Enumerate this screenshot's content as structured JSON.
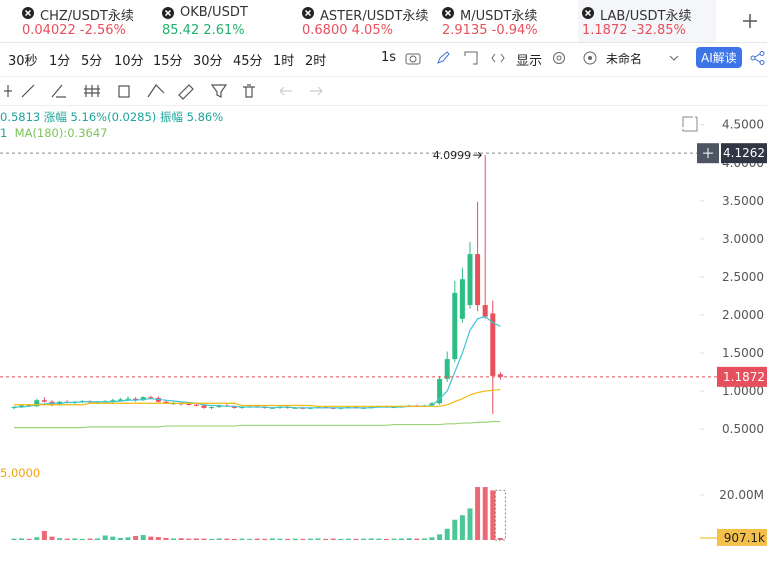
{
  "tabs": [
    {
      "symbol": "CHZ/USDT永续",
      "price": "0.04022",
      "change": "-2.56%",
      "color": "#e84f5c"
    },
    {
      "symbol": "OKB/USDT",
      "price": "85.42",
      "change": "2.61%",
      "color": "#20b26c"
    },
    {
      "symbol": "ASTER/USDT永续",
      "price": "0.6800",
      "change": "4.05%",
      "color": "#e84f5c"
    },
    {
      "symbol": "M/USDT永续",
      "price": "2.9135",
      "change": "-0.94%",
      "color": "#e84f5c"
    },
    {
      "symbol": "LAB/USDT永续",
      "price": "1.1872",
      "change": "-32.85%",
      "color": "#e84f5c"
    }
  ],
  "timeframes": [
    "30秒",
    "1分",
    "5分",
    "10分",
    "15分",
    "30分",
    "45分",
    "1时",
    "2时"
  ],
  "toolbar": {
    "interval": "1s",
    "display": "显示",
    "layout_name": "未命名",
    "ai_button": "AI解读"
  },
  "info": {
    "line1": "0.5813 涨幅 5.16%(0.0285) 振幅 5.86%",
    "ma_period": "1",
    "ma180": "MA(180):0.3647",
    "volume_ma": "5.0000"
  },
  "chart_data": {
    "type": "candlestick",
    "up_color": "#2ebd85",
    "down_color": "#e84f5c",
    "candles": [
      [
        0.78,
        0.8,
        0.76,
        0.79
      ],
      [
        0.79,
        0.82,
        0.78,
        0.81
      ],
      [
        0.81,
        0.83,
        0.79,
        0.8
      ],
      [
        0.8,
        0.9,
        0.79,
        0.88
      ],
      [
        0.88,
        0.92,
        0.85,
        0.86
      ],
      [
        0.86,
        0.88,
        0.8,
        0.82
      ],
      [
        0.82,
        0.87,
        0.81,
        0.86
      ],
      [
        0.86,
        0.88,
        0.84,
        0.85
      ],
      [
        0.85,
        0.87,
        0.83,
        0.86
      ],
      [
        0.86,
        0.88,
        0.84,
        0.87
      ],
      [
        0.87,
        0.88,
        0.84,
        0.85
      ],
      [
        0.85,
        0.87,
        0.83,
        0.86
      ],
      [
        0.86,
        0.88,
        0.84,
        0.87
      ],
      [
        0.87,
        0.9,
        0.85,
        0.88
      ],
      [
        0.88,
        0.91,
        0.86,
        0.89
      ],
      [
        0.89,
        0.93,
        0.87,
        0.9
      ],
      [
        0.9,
        0.92,
        0.86,
        0.88
      ],
      [
        0.88,
        0.93,
        0.87,
        0.92
      ],
      [
        0.92,
        0.94,
        0.9,
        0.91
      ],
      [
        0.91,
        0.93,
        0.85,
        0.86
      ],
      [
        0.86,
        0.88,
        0.83,
        0.84
      ],
      [
        0.84,
        0.86,
        0.82,
        0.84
      ],
      [
        0.84,
        0.85,
        0.81,
        0.83
      ],
      [
        0.83,
        0.85,
        0.81,
        0.82
      ],
      [
        0.82,
        0.84,
        0.8,
        0.81
      ],
      [
        0.81,
        0.82,
        0.77,
        0.78
      ],
      [
        0.78,
        0.8,
        0.76,
        0.79
      ],
      [
        0.79,
        0.82,
        0.78,
        0.81
      ],
      [
        0.81,
        0.83,
        0.79,
        0.8
      ],
      [
        0.8,
        0.81,
        0.77,
        0.78
      ],
      [
        0.78,
        0.8,
        0.77,
        0.79
      ],
      [
        0.79,
        0.81,
        0.78,
        0.8
      ],
      [
        0.8,
        0.82,
        0.78,
        0.79
      ],
      [
        0.79,
        0.8,
        0.77,
        0.78
      ],
      [
        0.78,
        0.79,
        0.77,
        0.78
      ],
      [
        0.78,
        0.8,
        0.77,
        0.79
      ],
      [
        0.79,
        0.8,
        0.77,
        0.78
      ],
      [
        0.78,
        0.79,
        0.77,
        0.78
      ],
      [
        0.78,
        0.79,
        0.76,
        0.77
      ],
      [
        0.77,
        0.79,
        0.76,
        0.78
      ],
      [
        0.78,
        0.8,
        0.77,
        0.79
      ],
      [
        0.79,
        0.8,
        0.77,
        0.78
      ],
      [
        0.78,
        0.79,
        0.76,
        0.77
      ],
      [
        0.77,
        0.79,
        0.76,
        0.78
      ],
      [
        0.78,
        0.8,
        0.77,
        0.79
      ],
      [
        0.79,
        0.8,
        0.77,
        0.78
      ],
      [
        0.78,
        0.79,
        0.77,
        0.78
      ],
      [
        0.78,
        0.8,
        0.77,
        0.79
      ],
      [
        0.79,
        0.81,
        0.78,
        0.8
      ],
      [
        0.8,
        0.81,
        0.78,
        0.79
      ],
      [
        0.79,
        0.8,
        0.78,
        0.79
      ],
      [
        0.79,
        0.81,
        0.78,
        0.8
      ],
      [
        0.8,
        0.82,
        0.79,
        0.81
      ],
      [
        0.81,
        0.82,
        0.79,
        0.8
      ],
      [
        0.8,
        0.82,
        0.79,
        0.81
      ],
      [
        0.81,
        0.86,
        0.8,
        0.84
      ],
      [
        0.84,
        1.2,
        0.82,
        1.16
      ],
      [
        1.16,
        1.52,
        1.12,
        1.42
      ],
      [
        1.42,
        2.45,
        1.38,
        2.29
      ],
      [
        1.95,
        2.62,
        1.9,
        2.47
      ],
      [
        2.13,
        2.96,
        2.08,
        2.8
      ],
      [
        2.8,
        3.49,
        2.05,
        2.13
      ],
      [
        2.13,
        4.0999,
        1.95,
        1.98
      ],
      [
        2.02,
        2.19,
        0.7,
        1.2
      ],
      [
        1.22,
        1.25,
        1.15,
        1.1872
      ]
    ],
    "ylim": [
      0.16,
      4.72
    ],
    "yticks": [
      {
        "value": 0.5,
        "label": "0.5000"
      },
      {
        "value": 1,
        "label": "1.0000"
      },
      {
        "value": 1.5,
        "label": "1.5000"
      },
      {
        "value": 2,
        "label": "2.0000"
      },
      {
        "value": 2.5,
        "label": "2.5000"
      },
      {
        "value": 3,
        "label": "3.0000"
      },
      {
        "value": 3.5,
        "label": "3.5000"
      },
      {
        "value": 4,
        "label": "4.0000"
      },
      {
        "value": 4.5,
        "label": "4.5000"
      }
    ],
    "crosshair_price": 4.1262,
    "ma_lines": [
      {
        "color": "#3cc6d8",
        "values": [
          0.79,
          0.79,
          0.8,
          0.82,
          0.83,
          0.84,
          0.84,
          0.85,
          0.85,
          0.86,
          0.86,
          0.86,
          0.86,
          0.86,
          0.87,
          0.88,
          0.88,
          0.89,
          0.9,
          0.89,
          0.88,
          0.87,
          0.86,
          0.85,
          0.84,
          0.82,
          0.81,
          0.81,
          0.8,
          0.8,
          0.79,
          0.79,
          0.79,
          0.79,
          0.78,
          0.79,
          0.79,
          0.78,
          0.78,
          0.78,
          0.78,
          0.78,
          0.78,
          0.78,
          0.78,
          0.78,
          0.78,
          0.78,
          0.79,
          0.79,
          0.79,
          0.79,
          0.8,
          0.8,
          0.8,
          0.81,
          0.9,
          1.0,
          1.25,
          1.5,
          1.8,
          1.95,
          1.98,
          1.9,
          1.85
        ]
      },
      {
        "color": "#f0b90b",
        "values": [
          0.82,
          0.82,
          0.82,
          0.82,
          0.82,
          0.82,
          0.82,
          0.82,
          0.82,
          0.82,
          0.84,
          0.84,
          0.84,
          0.84,
          0.84,
          0.84,
          0.84,
          0.84,
          0.84,
          0.84,
          0.84,
          0.84,
          0.84,
          0.84,
          0.84,
          0.84,
          0.84,
          0.84,
          0.84,
          0.84,
          0.81,
          0.81,
          0.81,
          0.81,
          0.81,
          0.81,
          0.81,
          0.81,
          0.81,
          0.81,
          0.8,
          0.8,
          0.8,
          0.8,
          0.8,
          0.8,
          0.8,
          0.8,
          0.8,
          0.8,
          0.8,
          0.8,
          0.8,
          0.8,
          0.8,
          0.8,
          0.8,
          0.82,
          0.86,
          0.9,
          0.95,
          0.98,
          1.0,
          1.01,
          1.02
        ]
      },
      {
        "color": "#9ed47a",
        "values": [
          0.52,
          0.52,
          0.52,
          0.52,
          0.52,
          0.52,
          0.52,
          0.52,
          0.52,
          0.52,
          0.53,
          0.53,
          0.53,
          0.53,
          0.53,
          0.53,
          0.53,
          0.53,
          0.53,
          0.53,
          0.54,
          0.54,
          0.54,
          0.54,
          0.54,
          0.54,
          0.54,
          0.54,
          0.54,
          0.54,
          0.55,
          0.55,
          0.55,
          0.55,
          0.55,
          0.55,
          0.55,
          0.55,
          0.55,
          0.55,
          0.55,
          0.55,
          0.55,
          0.55,
          0.55,
          0.55,
          0.55,
          0.55,
          0.55,
          0.55,
          0.56,
          0.56,
          0.56,
          0.56,
          0.56,
          0.56,
          0.56,
          0.57,
          0.57,
          0.58,
          0.58,
          0.59,
          0.59,
          0.6,
          0.6
        ]
      }
    ],
    "volume": [
      600000,
      700000,
      500000,
      1200000,
      4000000,
      1500000,
      800000,
      600000,
      700000,
      500000,
      600000,
      700000,
      2000000,
      1500000,
      900000,
      1200000,
      1800000,
      2200000,
      1500000,
      1300000,
      900000,
      700000,
      800000,
      600000,
      700000,
      600000,
      500000,
      700000,
      600000,
      500000,
      600000,
      500000,
      600000,
      500000,
      700000,
      600000,
      500000,
      600000,
      500000,
      600000,
      700000,
      500000,
      600000,
      500000,
      600000,
      500000,
      600000,
      700000,
      600000,
      500000,
      600000,
      700000,
      800000,
      600000,
      700000,
      1200000,
      2500000,
      5000000,
      9000000,
      11000000,
      14000000,
      23500000,
      23500000,
      22000000,
      907100
    ],
    "volume_ylim": [
      0,
      35500000
    ],
    "volume_ticks": [
      {
        "value": 20000000,
        "label": "20.00M"
      }
    ],
    "volume_marker": {
      "value": 907100,
      "label": "907.1k"
    }
  }
}
